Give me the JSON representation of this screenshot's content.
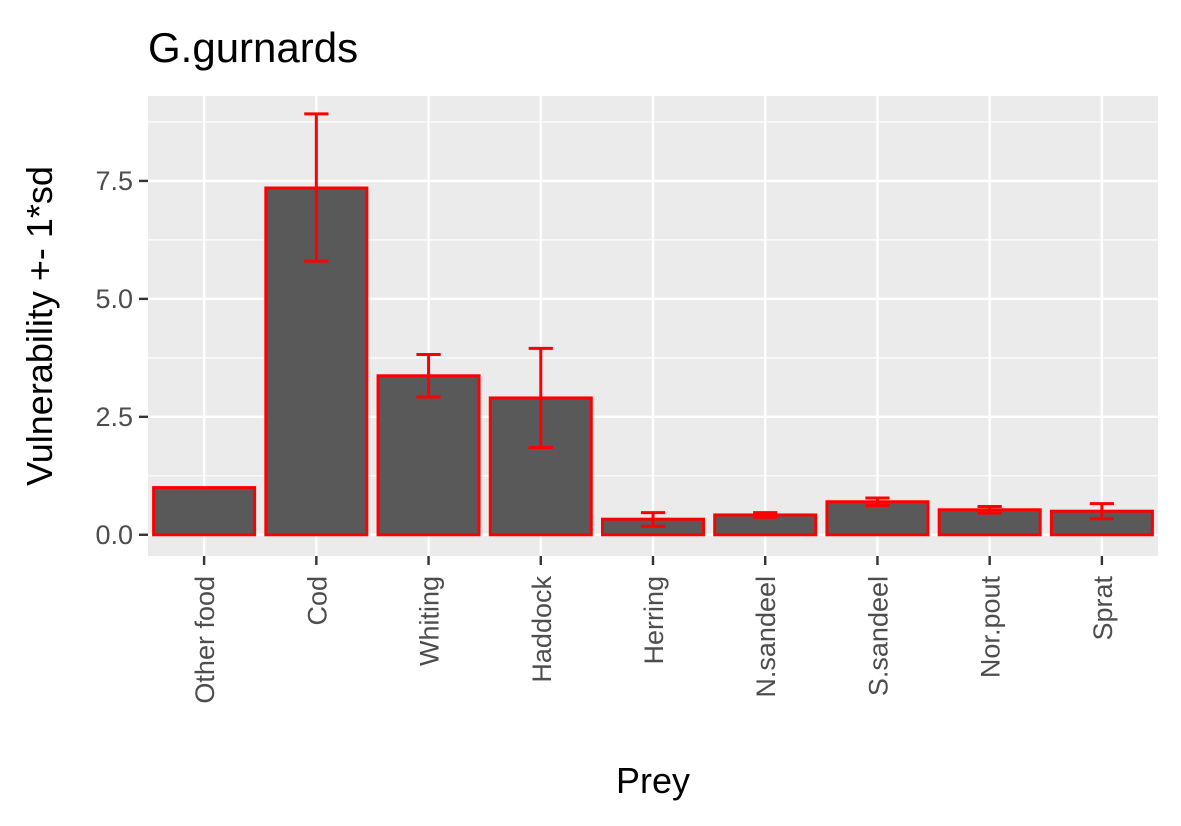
{
  "chart_data": {
    "type": "bar",
    "title": "G.gurnards",
    "xlabel": "Prey",
    "ylabel": "Vulnerability +- 1*sd",
    "categories": [
      "Other food",
      "Cod",
      "Whiting",
      "Haddock",
      "Herring",
      "N.sandeel",
      "S.sandeel",
      "Nor.pout",
      "Sprat"
    ],
    "values": [
      1.0,
      7.35,
      3.37,
      2.9,
      0.33,
      0.42,
      0.7,
      0.53,
      0.5
    ],
    "error_low": [
      1.0,
      5.8,
      2.92,
      1.85,
      0.18,
      0.37,
      0.62,
      0.46,
      0.34
    ],
    "error_high": [
      1.0,
      8.92,
      3.82,
      3.95,
      0.47,
      0.47,
      0.78,
      0.6,
      0.66
    ],
    "ylim": [
      -0.45,
      9.3
    ],
    "yticks": [
      0.0,
      2.5,
      5.0,
      7.5
    ],
    "ytick_labels": [
      "0.0",
      "2.5",
      "5.0",
      "7.5"
    ],
    "grid": true,
    "legend": "none",
    "colors": {
      "bar_fill": "#595959",
      "bar_outline": "#ff0000",
      "error_bar": "#ff0000",
      "panel_background": "#ebebeb",
      "grid": "#ffffff",
      "tick_text": "#4d4d4d",
      "tick_mark": "#333333"
    }
  }
}
